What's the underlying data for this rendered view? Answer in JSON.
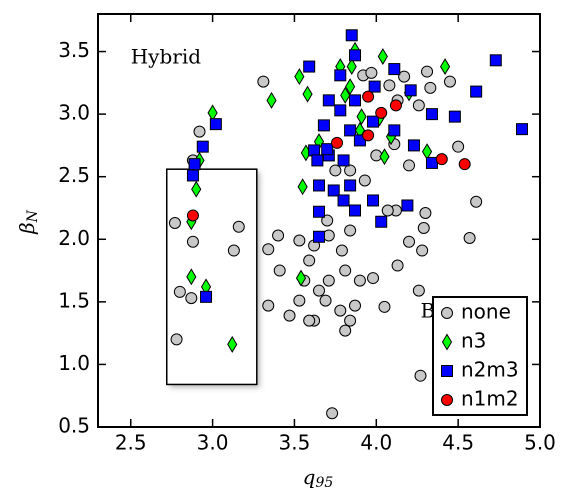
{
  "chart_data": {
    "type": "scatter",
    "xlabel": {
      "main": "q",
      "sub": "95"
    },
    "ylabel": {
      "main": "β",
      "sub": "N"
    },
    "xlim": [
      2.3,
      5.0
    ],
    "ylim": [
      0.5,
      3.8
    ],
    "xticks": [
      2.5,
      {
        "value": 3.0,
        "label": "3.0"
      },
      3.5,
      {
        "value": 4.0,
        "label": "4.0"
      },
      4.5,
      {
        "value": 5.0,
        "label": "5.0"
      }
    ],
    "yticks": [
      0.5,
      {
        "value": 1.0,
        "label": "1.0"
      },
      1.5,
      {
        "value": 2.0,
        "label": "2.0"
      },
      2.5,
      {
        "value": 3.0,
        "label": "3.0"
      },
      3.5
    ],
    "annotations": [
      {
        "text": "Hybrid",
        "x": 2.5,
        "y": 3.45
      },
      {
        "text": "B",
        "x": 4.27,
        "y": 1.42
      }
    ],
    "region": {
      "x": [
        2.72,
        3.27
      ],
      "y": [
        0.84,
        2.56
      ]
    },
    "legend": "lower right",
    "series": [
      {
        "name": "none",
        "color": "#c8c8c8",
        "marker": "circle",
        "x": [
          2.88,
          2.92,
          2.77,
          2.8,
          2.78,
          2.87,
          3.16,
          3.13,
          2.88,
          3.31,
          3.34,
          3.34,
          3.73,
          3.47,
          3.53,
          3.56,
          3.59,
          3.62,
          3.53,
          3.65,
          3.69,
          3.62,
          3.78,
          3.81,
          3.84,
          3.87,
          3.81,
          3.79,
          3.71,
          3.84,
          3.9,
          3.98,
          4.05,
          4.13,
          4.2,
          4.29,
          4.3,
          4.28,
          4.26,
          4.27,
          4.57,
          4.61,
          4.5,
          4.31,
          4.45,
          4.33,
          4.17,
          4.26,
          4.13,
          3.92,
          3.97,
          4.08,
          4.11,
          4.2,
          4.0,
          3.75,
          3.7,
          3.84,
          3.93,
          4.12,
          4.07,
          3.41,
          3.4,
          3.59,
          3.71
        ],
        "values": [
          2.63,
          2.86,
          2.13,
          1.58,
          1.2,
          1.53,
          2.1,
          1.91,
          1.98,
          3.26,
          1.92,
          1.47,
          0.61,
          1.39,
          1.51,
          1.67,
          1.83,
          1.95,
          1.99,
          1.59,
          1.51,
          1.35,
          1.43,
          1.27,
          1.35,
          1.47,
          1.75,
          1.91,
          2.03,
          2.07,
          1.67,
          1.69,
          1.46,
          1.79,
          1.98,
          2.09,
          2.21,
          1.91,
          1.59,
          0.91,
          2.01,
          2.3,
          2.74,
          3.34,
          3.26,
          3.21,
          3.3,
          3.07,
          3.11,
          3.31,
          3.33,
          3.23,
          2.76,
          2.59,
          2.67,
          2.55,
          2.15,
          2.55,
          2.47,
          2.23,
          2.23,
          1.75,
          2.03,
          1.35,
          1.67
        ]
      },
      {
        "name": "n3",
        "color": "#00ff00",
        "marker": "diamond",
        "x": [
          3.0,
          2.88,
          2.92,
          2.9,
          2.87,
          2.87,
          2.96,
          3.12,
          3.53,
          3.36,
          3.58,
          3.57,
          3.55,
          3.54,
          3.87,
          3.78,
          3.84,
          3.81,
          3.85,
          4.04,
          4.09,
          4.2,
          4.42,
          4.31,
          3.9,
          3.65,
          4.02,
          3.91,
          4.05
        ],
        "values": [
          3.01,
          2.53,
          2.63,
          2.4,
          2.14,
          1.7,
          1.62,
          1.16,
          3.3,
          3.11,
          3.16,
          2.69,
          2.42,
          1.69,
          3.51,
          3.38,
          3.22,
          3.15,
          3.38,
          3.46,
          2.82,
          3.17,
          3.38,
          2.7,
          2.87,
          2.78,
          2.97,
          2.98,
          2.66
        ]
      },
      {
        "name": "n2m3",
        "color": "#0000ff",
        "marker": "square",
        "x": [
          3.59,
          2.88,
          2.94,
          3.02,
          2.96,
          2.89,
          3.85,
          3.87,
          3.99,
          4.11,
          4.21,
          4.34,
          4.48,
          4.61,
          4.73,
          4.89,
          4.23,
          4.34,
          3.68,
          3.71,
          3.78,
          3.84,
          3.9,
          3.62,
          3.64,
          3.71,
          3.8,
          3.65,
          3.74,
          3.84,
          3.8,
          3.87,
          3.65,
          3.65,
          4.03,
          4.19,
          3.98,
          3.98,
          4.11,
          3.7,
          3.87,
          3.78
        ],
        "values": [
          3.38,
          2.51,
          2.74,
          2.92,
          1.54,
          2.6,
          3.63,
          3.47,
          3.22,
          3.36,
          3.19,
          3.0,
          2.98,
          3.18,
          3.43,
          2.88,
          2.75,
          2.61,
          2.91,
          3.11,
          3.03,
          2.87,
          2.79,
          2.71,
          2.63,
          2.67,
          2.63,
          2.43,
          2.39,
          2.43,
          2.31,
          2.23,
          2.22,
          2.02,
          2.14,
          2.27,
          2.31,
          2.94,
          2.87,
          2.72,
          3.11,
          3.31
        ]
      },
      {
        "name": "n1m2",
        "color": "#ff0000",
        "marker": "circle",
        "x": [
          2.88,
          3.76,
          3.95,
          4.03,
          4.12,
          3.95,
          4.4,
          4.54
        ],
        "values": [
          2.19,
          2.77,
          2.83,
          3.01,
          3.07,
          3.14,
          2.64,
          2.6
        ]
      }
    ]
  }
}
